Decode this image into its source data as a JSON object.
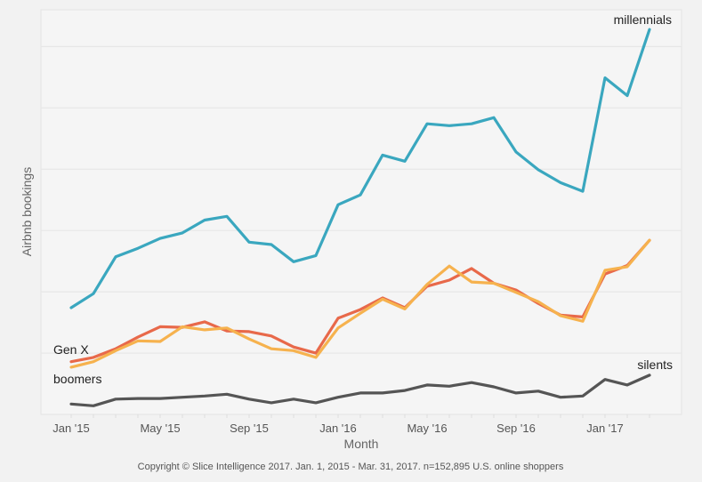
{
  "chart_data": {
    "type": "line",
    "title": "",
    "xlabel": "Month",
    "ylabel": "Airbnb bookings",
    "x": [
      "Jan '15",
      "Feb '15",
      "Mar '15",
      "Apr '15",
      "May '15",
      "Jun '15",
      "Jul '15",
      "Aug '15",
      "Sep '15",
      "Oct '15",
      "Nov '15",
      "Dec '15",
      "Jan '16",
      "Feb '16",
      "Mar '16",
      "Apr '16",
      "May '16",
      "Jun '16",
      "Jul '16",
      "Aug '16",
      "Sep '16",
      "Oct '16",
      "Nov '16",
      "Dec '16",
      "Jan '17",
      "Feb '17",
      "Mar '17"
    ],
    "xticks": [
      "Jan '15",
      "May '15",
      "Sep '15",
      "Jan '16",
      "May '16",
      "Sep '16",
      "Jan '17"
    ],
    "ylim": [
      0,
      660
    ],
    "ygrid": [
      100,
      200,
      300,
      400,
      500,
      600
    ],
    "yticks_shown": false,
    "grid": true,
    "legend": "direct labels on lines",
    "series": [
      {
        "name": "millennials",
        "color": "#3aa7bf",
        "values": [
          174,
          197,
          257,
          271,
          287,
          296,
          317,
          323,
          281,
          277,
          249,
          259,
          342,
          358,
          423,
          413,
          474,
          471,
          474,
          484,
          428,
          399,
          378,
          364,
          549,
          520,
          628
        ]
      },
      {
        "name": "Gen X",
        "color": "#e8694a",
        "values": [
          86,
          93,
          107,
          126,
          143,
          142,
          151,
          136,
          135,
          128,
          110,
          100,
          157,
          171,
          190,
          174,
          209,
          219,
          238,
          214,
          203,
          181,
          162,
          159,
          229,
          243,
          284
        ]
      },
      {
        "name": "boomers",
        "color": "#f6b24e",
        "values": [
          77,
          86,
          104,
          120,
          119,
          143,
          138,
          141,
          123,
          107,
          104,
          93,
          141,
          165,
          188,
          172,
          212,
          242,
          216,
          214,
          199,
          184,
          161,
          152,
          235,
          241,
          284
        ]
      },
      {
        "name": "silents",
        "color": "#555555",
        "values": [
          17,
          14,
          25,
          26,
          26,
          28,
          30,
          33,
          25,
          19,
          25,
          19,
          28,
          35,
          35,
          39,
          48,
          46,
          52,
          45,
          35,
          38,
          28,
          30,
          57,
          48,
          64
        ]
      }
    ],
    "footnote": "Copyright © Slice Intelligence 2017. Jan. 1, 2015 - Mar. 31, 2017. n=152,895 U.S. online shoppers"
  }
}
